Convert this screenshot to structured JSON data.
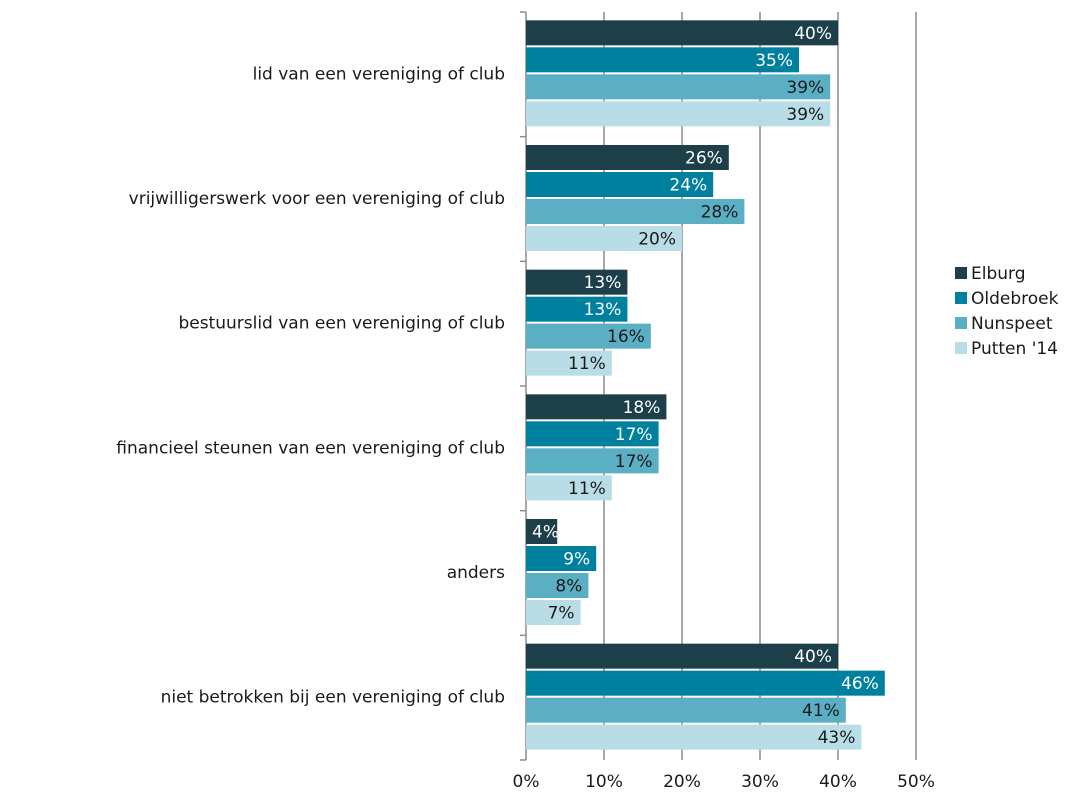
{
  "chart_data": {
    "type": "barh",
    "categories": [
      "lid van een vereniging of club",
      "vrijwilligerswerk voor een vereniging of club",
      "bestuurslid van een vereniging of club",
      "financieel steunen van een vereniging of club",
      "anders",
      "niet betrokken bij een vereniging of club"
    ],
    "series": [
      {
        "name": "Elburg",
        "color": "#1d3f4a",
        "label_color": "#ffffff",
        "values": [
          40,
          26,
          13,
          18,
          4,
          40
        ],
        "value_labels": [
          "40%",
          "26%",
          "13%",
          "18%",
          "4%",
          "40%"
        ]
      },
      {
        "name": "Oldebroek",
        "color": "#00809f",
        "label_color": "#ffffff",
        "values": [
          35,
          24,
          13,
          17,
          9,
          46
        ],
        "value_labels": [
          "35%",
          "24%",
          "13%",
          "17%",
          "9%",
          "46%"
        ]
      },
      {
        "name": "Nunspeet",
        "color": "#5bafc4",
        "label_color": "#1a1a1a",
        "values": [
          39,
          28,
          16,
          17,
          8,
          41
        ],
        "value_labels": [
          "39%",
          "28%",
          "16%",
          "17%",
          "8%",
          "41%"
        ]
      },
      {
        "name": "Putten '14",
        "color": "#b8dde6",
        "label_color": "#1a1a1a",
        "values": [
          39,
          20,
          11,
          11,
          7,
          43
        ],
        "value_labels": [
          "39%",
          "20%",
          "11%",
          "11%",
          "7%",
          "43%"
        ]
      }
    ],
    "xlim": [
      0,
      50
    ],
    "xticks": [
      {
        "value": 0,
        "label": "0%"
      },
      {
        "value": 10,
        "label": "10%"
      },
      {
        "value": 20,
        "label": "20%"
      },
      {
        "value": 30,
        "label": "30%"
      },
      {
        "value": 40,
        "label": "40%"
      },
      {
        "value": 50,
        "label": "50%"
      }
    ],
    "grid": true,
    "legend": "right"
  }
}
